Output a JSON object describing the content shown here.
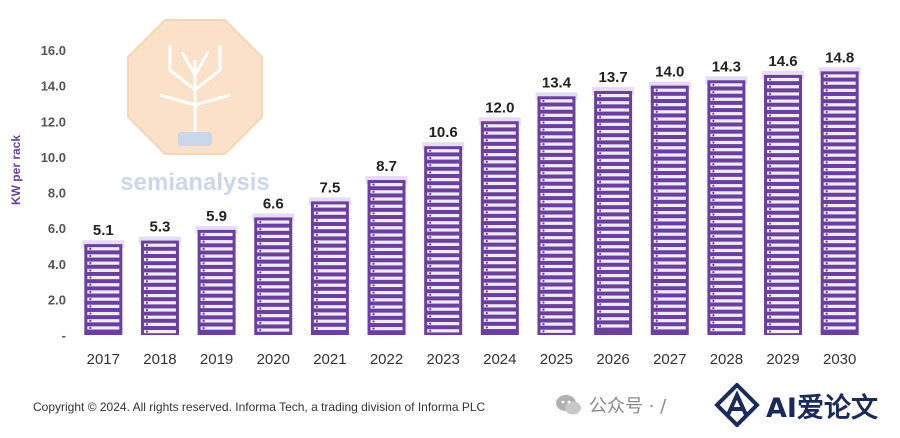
{
  "chart_data": {
    "type": "bar",
    "categories": [
      "2017",
      "2018",
      "2019",
      "2020",
      "2021",
      "2022",
      "2023",
      "2024",
      "2025",
      "2026",
      "2027",
      "2028",
      "2029",
      "2030"
    ],
    "values": [
      5.1,
      5.3,
      5.9,
      6.6,
      7.5,
      8.7,
      10.6,
      12.0,
      13.4,
      13.7,
      14.0,
      14.3,
      14.6,
      14.8
    ],
    "data_labels": [
      "5.1",
      "5.3",
      "5.9",
      "6.6",
      "7.5",
      "8.7",
      "10.6",
      "12.0",
      "13.4",
      "13.7",
      "14.0",
      "14.3",
      "14.6",
      "14.8"
    ],
    "ylabel": "KW per rack",
    "ylim": [
      0,
      16
    ],
    "yticks": [
      {
        "value": 0,
        "label": "-"
      },
      {
        "value": 2,
        "label": "2.0"
      },
      {
        "value": 4,
        "label": "4.0"
      },
      {
        "value": 6,
        "label": "6.0"
      },
      {
        "value": 8,
        "label": "8.0"
      },
      {
        "value": 10,
        "label": "10.0"
      },
      {
        "value": 12,
        "label": "12.0"
      },
      {
        "value": 14,
        "label": "14.0"
      },
      {
        "value": 16,
        "label": "16.0"
      }
    ],
    "grid": false,
    "colors": {
      "bar": "#6a3fa0",
      "slot": "#ffffff",
      "bar_top": "#e8dcf5"
    }
  },
  "watermark": {
    "text": "semianalysis",
    "icon": "tree-circuit-logo"
  },
  "footer": {
    "copyright": "Copyright © 2024. All rights reserved. Informa Tech, a trading division of Informa PLC",
    "wechat": "公众号 · /",
    "brand": "AI爱论文"
  }
}
